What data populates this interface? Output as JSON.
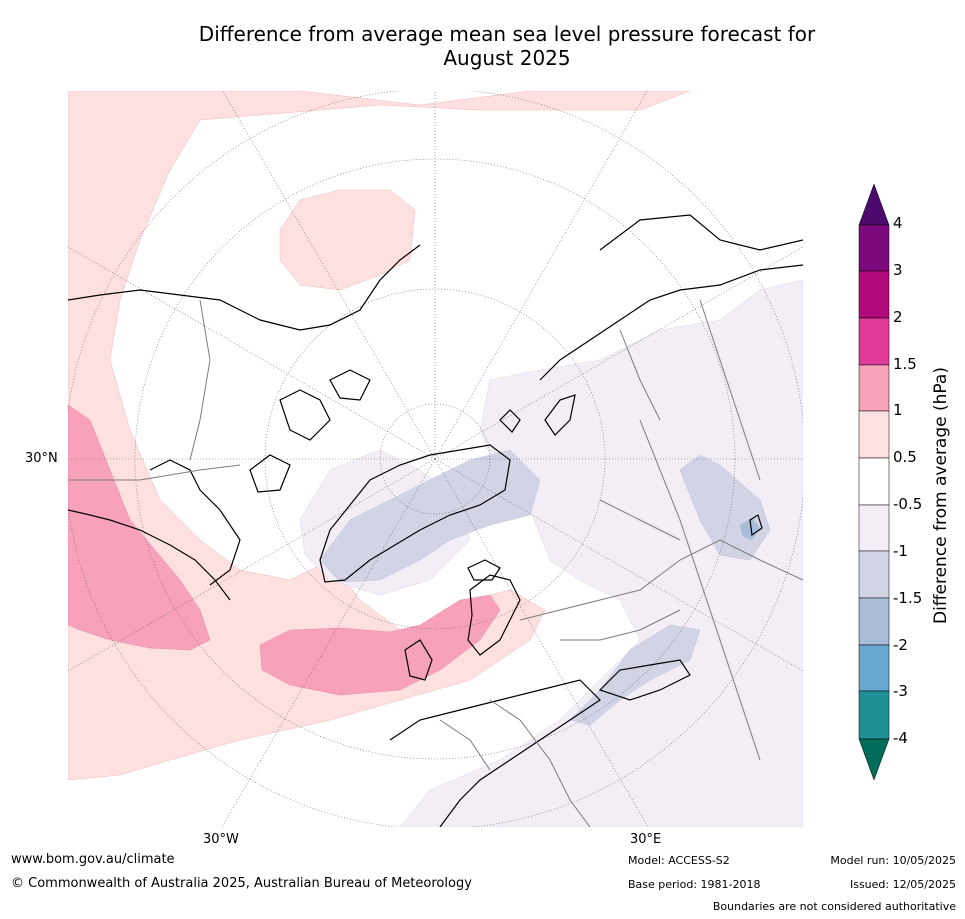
{
  "title_line1": "Difference from average mean sea level pressure forecast for",
  "title_line2": "August 2025",
  "lat_label": "30°N",
  "lon_labels": [
    "30°W",
    "30°E"
  ],
  "colorbar": {
    "title": "Difference from average (hPa)",
    "ticks": [
      "4",
      "3",
      "2",
      "1.5",
      "1",
      "0.5",
      "-0.5",
      "-1",
      "-1.5",
      "-2",
      "-3",
      "-4"
    ],
    "colors": {
      "above_4": "#4d0a6e",
      "3_to_4": "#7c0a7c",
      "2_to_3": "#b0097a",
      "1.5_to_2": "#e03b9b",
      "1_to_1.5": "#f7a1ba",
      "0.5_to_1": "#fde0df",
      "neutral": "#ffffff",
      "-0.5_to_-1": "#f3edf6",
      "-1_to_-1.5": "#d2d4e6",
      "-1.5_to_-2": "#a9bcd8",
      "-2_to_-3": "#67a8cf",
      "-3_to_-4": "#1f9095",
      "below_-4": "#016c59"
    }
  },
  "footer": {
    "url": "www.bom.gov.au/climate",
    "copyright": "© Commonwealth of Australia 2025, Australian Bureau of Meteorology",
    "model": "Model: ACCESS-S2",
    "base_period": "Base period: 1981-2018",
    "model_run": "Model run: 10/05/2025",
    "issued": "Issued: 12/05/2025",
    "disclaimer": "Boundaries are not considered authoritative"
  }
}
